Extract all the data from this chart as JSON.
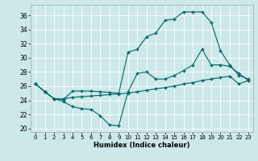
{
  "xlabel": "Humidex (Indice chaleur)",
  "background_color": "#cce8e8",
  "line_color": "#006666",
  "xlim": [
    -0.5,
    23.5
  ],
  "ylim": [
    19.5,
    37.5
  ],
  "xticks": [
    0,
    1,
    2,
    3,
    4,
    5,
    6,
    7,
    8,
    9,
    10,
    11,
    12,
    13,
    14,
    15,
    16,
    17,
    18,
    19,
    20,
    21,
    22,
    23
  ],
  "yticks": [
    20,
    22,
    24,
    26,
    28,
    30,
    32,
    34,
    36
  ],
  "series": [
    {
      "x": [
        0,
        1,
        2,
        3,
        4,
        5,
        6,
        7,
        8,
        9,
        10,
        11,
        12,
        13,
        14,
        15,
        16,
        17,
        18,
        19,
        20,
        21,
        22,
        23
      ],
      "y": [
        26.3,
        25.2,
        24.2,
        23.8,
        23.1,
        22.8,
        22.7,
        21.8,
        20.5,
        20.4,
        25.2,
        27.8,
        28.0,
        27.0,
        27.0,
        27.5,
        28.2,
        29.0,
        31.2,
        29.0,
        29.0,
        28.8,
        27.8,
        26.8
      ]
    },
    {
      "x": [
        0,
        1,
        2,
        3,
        4,
        5,
        6,
        7,
        8,
        9,
        10,
        11,
        12,
        13,
        14,
        15,
        16,
        17,
        18,
        19,
        20,
        21,
        22,
        23
      ],
      "y": [
        26.3,
        25.2,
        24.2,
        24.1,
        25.3,
        25.3,
        25.3,
        25.2,
        25.1,
        25.0,
        30.8,
        31.2,
        33.0,
        33.5,
        35.3,
        35.5,
        36.5,
        36.5,
        36.5,
        35.0,
        31.0,
        29.0,
        27.5,
        27.0
      ]
    },
    {
      "x": [
        0,
        1,
        2,
        3,
        4,
        5,
        6,
        7,
        8,
        9,
        10,
        11,
        12,
        13,
        14,
        15,
        16,
        17,
        18,
        19,
        20,
        21,
        22,
        23
      ],
      "y": [
        26.3,
        25.2,
        24.2,
        24.2,
        24.4,
        24.5,
        24.6,
        24.7,
        24.8,
        24.9,
        25.0,
        25.2,
        25.4,
        25.6,
        25.8,
        26.0,
        26.3,
        26.5,
        26.8,
        27.0,
        27.2,
        27.4,
        26.3,
        26.8
      ]
    }
  ]
}
